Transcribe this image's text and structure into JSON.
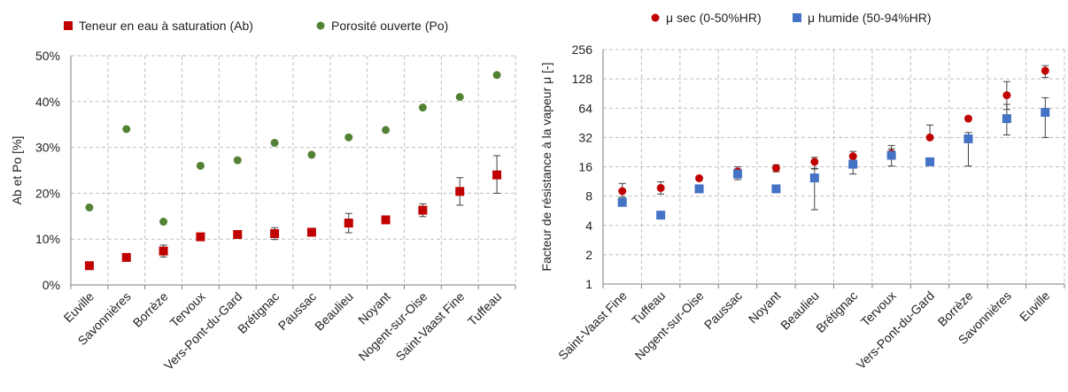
{
  "chart_data": [
    {
      "type": "scatter",
      "title": "",
      "xlabel": "",
      "ylabel": "Ab et Po [%]",
      "ylim": [
        0,
        50
      ],
      "yticks": [
        "0%",
        "10%",
        "20%",
        "30%",
        "40%",
        "50%"
      ],
      "yscale": "linear",
      "grid": true,
      "legend_position": "top",
      "categories": [
        "Euville",
        "Savonnières",
        "Borrèze",
        "Tervoux",
        "Vers-Pont-du-Gard",
        "Brétignac",
        "Paussac",
        "Beaulieu",
        "Noyant",
        "Nogent-sur-Oise",
        "Saint-Vaast Fine",
        "Tuffeau"
      ],
      "series": [
        {
          "name": "Teneur en eau à saturation (Ab)",
          "marker": "square",
          "color": "#c00000",
          "values": [
            4.2,
            6.0,
            7.4,
            10.5,
            11.0,
            11.2,
            11.5,
            13.5,
            14.2,
            16.3,
            20.4,
            24.0
          ],
          "err_low": [
            3.6,
            5.5,
            6.1,
            9.9,
            10.6,
            9.9,
            10.8,
            11.4,
            13.6,
            14.9,
            17.4,
            20.0
          ],
          "err_high": [
            4.9,
            6.6,
            8.7,
            11.2,
            11.4,
            12.5,
            12.2,
            15.6,
            14.8,
            17.7,
            23.4,
            28.2
          ]
        },
        {
          "name": "Porosité ouverte (Po)",
          "marker": "circle",
          "color": "#548235",
          "values": [
            16.9,
            34.0,
            13.8,
            26.0,
            27.2,
            31.0,
            28.4,
            32.2,
            33.8,
            38.7,
            41.0,
            45.8
          ]
        }
      ]
    },
    {
      "type": "scatter",
      "title": "",
      "xlabel": "",
      "ylabel": "Facteur de résistance à la vapeur μ [-]",
      "ylim": [
        1,
        256
      ],
      "yticks": [
        "1",
        "2",
        "4",
        "8",
        "16",
        "32",
        "64",
        "128",
        "256"
      ],
      "yscale": "log2",
      "grid": true,
      "legend_position": "top",
      "categories": [
        "Saint-Vaast Fine",
        "Tuffeau",
        "Nogent-sur-Oise",
        "Paussac",
        "Noyant",
        "Beaulieu",
        "Brétignac",
        "Tervoux",
        "Vers-Pont-du-Gard",
        "Borrèze",
        "Savonnières",
        "Euville"
      ],
      "series": [
        {
          "name": "μ sec (0-50%HR)",
          "marker": "circle",
          "color": "#c00000",
          "values": [
            9.0,
            9.7,
            12.2,
            14.3,
            15.5,
            18.0,
            20.5,
            22.0,
            32.0,
            50.0,
            87.0,
            155.0
          ],
          "err_low": [
            7.8,
            8.4,
            12.2,
            12.5,
            14.2,
            15.4,
            17.2,
            20.0,
            32.0,
            50.0,
            62.0,
            132.0
          ],
          "err_high": [
            10.8,
            11.2,
            12.2,
            16.0,
            16.8,
            20.0,
            23.0,
            26.5,
            43.0,
            50.0,
            120.0,
            175.0
          ]
        },
        {
          "name": "μ humide (50-94%HR)",
          "marker": "square",
          "color": "#4472c4",
          "values": [
            6.9,
            5.1,
            9.5,
            13.5,
            9.5,
            12.3,
            17.0,
            21.0,
            18.0,
            31.0,
            50.0,
            58.0
          ],
          "err_low": [
            6.9,
            5.1,
            9.5,
            11.8,
            9.5,
            5.8,
            13.5,
            16.3,
            18.0,
            16.3,
            34.0,
            32.0
          ],
          "err_high": [
            6.9,
            5.1,
            9.5,
            15.2,
            9.5,
            15.2,
            20.0,
            24.5,
            18.0,
            36.0,
            70.0,
            82.0
          ]
        }
      ]
    }
  ]
}
